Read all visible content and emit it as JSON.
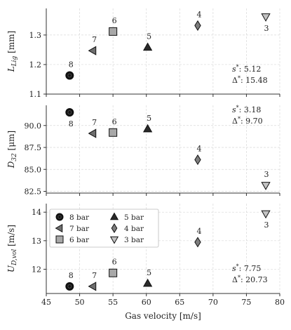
{
  "chart_data": [
    {
      "type": "scatter",
      "panel": "top",
      "ylabel": "L_Lig [mm]",
      "ylabel_main": "L",
      "ylabel_sub": "Lig",
      "ylabel_unit": "[mm]",
      "xlim": [
        45,
        80
      ],
      "ylim": [
        1.1,
        1.39
      ],
      "yticks": [
        1.1,
        1.2,
        1.3
      ],
      "ytick_labels": [
        "1.1",
        "1.2",
        "1.3"
      ],
      "show_xticklabels": false,
      "grid": true,
      "points": [
        {
          "x": 48.5,
          "y": 1.163,
          "label": "8",
          "label_pos": "above",
          "marker": "circle"
        },
        {
          "x": 52.0,
          "y": 1.247,
          "label": "7",
          "label_pos": "above",
          "marker": "left-triangle"
        },
        {
          "x": 55.0,
          "y": 1.312,
          "label": "6",
          "label_pos": "above",
          "marker": "square"
        },
        {
          "x": 60.2,
          "y": 1.258,
          "label": "5",
          "label_pos": "above",
          "marker": "triangle-up"
        },
        {
          "x": 67.7,
          "y": 1.332,
          "label": "4",
          "label_pos": "above",
          "marker": "diamond"
        },
        {
          "x": 77.9,
          "y": 1.362,
          "label": "3",
          "label_pos": "below",
          "marker": "triangle-down"
        }
      ],
      "annotations": [
        "s*: 5.12",
        "Δ*: 15.48"
      ]
    },
    {
      "type": "scatter",
      "panel": "middle",
      "ylabel": "D_32 [μm]",
      "ylabel_main": "D",
      "ylabel_sub": "32",
      "ylabel_unit": "[μm]",
      "xlim": [
        45,
        80
      ],
      "ylim": [
        82.3,
        92.3
      ],
      "yticks": [
        82.5,
        85.0,
        87.5,
        90.0
      ],
      "ytick_labels": [
        "82.5",
        "85.0",
        "87.5",
        "90.0"
      ],
      "show_xticklabels": false,
      "grid": true,
      "points": [
        {
          "x": 48.5,
          "y": 91.5,
          "label": "8",
          "label_pos": "below",
          "marker": "circle"
        },
        {
          "x": 52.0,
          "y": 89.1,
          "label": "7",
          "label_pos": "above",
          "marker": "left-triangle"
        },
        {
          "x": 55.0,
          "y": 89.2,
          "label": "6",
          "label_pos": "above",
          "marker": "square"
        },
        {
          "x": 60.2,
          "y": 89.6,
          "label": "5",
          "label_pos": "above",
          "marker": "triangle-up"
        },
        {
          "x": 67.7,
          "y": 86.1,
          "label": "4",
          "label_pos": "above",
          "marker": "diamond"
        },
        {
          "x": 77.9,
          "y": 83.2,
          "label": "3",
          "label_pos": "above",
          "marker": "triangle-down"
        }
      ],
      "annotations": [
        "s*: 3.18",
        "Δ*: 9.70"
      ]
    },
    {
      "type": "scatter",
      "panel": "bottom",
      "ylabel": "U_D,vol [m/s]",
      "ylabel_main": "U",
      "ylabel_sub": "D,vol",
      "ylabel_unit": "[m/s]",
      "xlabel": "Gas velocity [m/s]",
      "xlim": [
        45,
        80
      ],
      "ylim": [
        11.15,
        14.3
      ],
      "yticks": [
        12,
        13,
        14
      ],
      "ytick_labels": [
        "12",
        "13",
        "14"
      ],
      "xticks": [
        45,
        50,
        55,
        60,
        65,
        70,
        75,
        80
      ],
      "xtick_labels": [
        "45",
        "50",
        "55",
        "60",
        "65",
        "70",
        "75",
        "80"
      ],
      "show_xticklabels": true,
      "grid": true,
      "points": [
        {
          "x": 48.5,
          "y": 11.4,
          "label": "8",
          "label_pos": "above",
          "marker": "circle"
        },
        {
          "x": 52.0,
          "y": 11.4,
          "label": "7",
          "label_pos": "above",
          "marker": "left-triangle"
        },
        {
          "x": 55.0,
          "y": 11.87,
          "label": "6",
          "label_pos": "above",
          "marker": "square"
        },
        {
          "x": 60.2,
          "y": 11.5,
          "label": "5",
          "label_pos": "above",
          "marker": "triangle-up"
        },
        {
          "x": 67.7,
          "y": 12.95,
          "label": "4",
          "label_pos": "above",
          "marker": "diamond"
        },
        {
          "x": 77.9,
          "y": 13.95,
          "label": "3",
          "label_pos": "below",
          "marker": "triangle-down"
        }
      ],
      "annotations": [
        "s*: 7.75",
        "Δ*: 20.73"
      ],
      "legend": {
        "placement": "upper-left",
        "entries": [
          {
            "label": "8 bar",
            "marker": "circle"
          },
          {
            "label": "7 bar",
            "marker": "left-triangle"
          },
          {
            "label": "6 bar",
            "marker": "square"
          },
          {
            "label": "5 bar",
            "marker": "triangle-up"
          },
          {
            "label": "4 bar",
            "marker": "diamond"
          },
          {
            "label": "3 bar",
            "marker": "triangle-down"
          }
        ]
      }
    }
  ],
  "colors": {
    "circle": "#111111",
    "left-triangle": "#6e6e6e",
    "square": "#a8a8a8",
    "triangle-up": "#2a2a2a",
    "diamond": "#7d7d7d",
    "triangle-down": "#c2c2c2",
    "edge": "#111111",
    "grid": "#d9d9d9"
  }
}
